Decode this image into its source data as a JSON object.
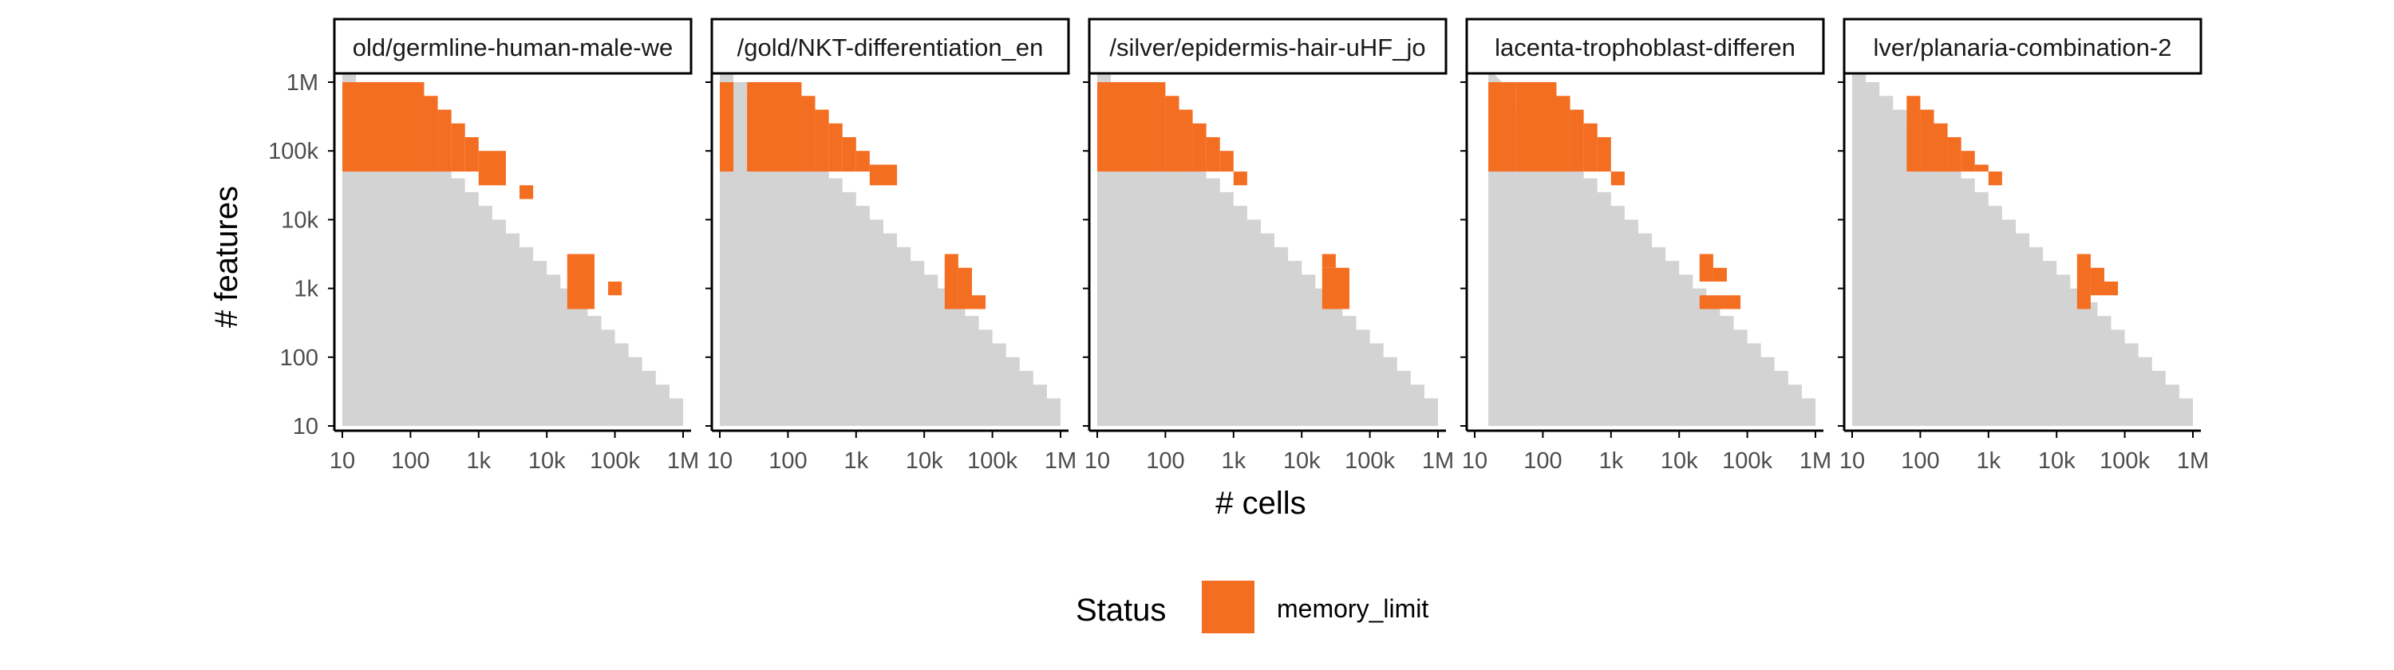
{
  "chart_data": {
    "type": "heatmap",
    "xlabel": "# cells",
    "ylabel": "# features",
    "x_scale": "log10",
    "y_scale": "log10",
    "xlim": [
      10,
      1000000
    ],
    "ylim": [
      10,
      1000000
    ],
    "x_ticks": [
      {
        "value": 10,
        "label": "10"
      },
      {
        "value": 100,
        "label": "100"
      },
      {
        "value": 1000,
        "label": "1k"
      },
      {
        "value": 10000,
        "label": "10k"
      },
      {
        "value": 100000,
        "label": "100k"
      },
      {
        "value": 1000000,
        "label": "1M"
      }
    ],
    "y_ticks": [
      {
        "value": 10,
        "label": "10"
      },
      {
        "value": 100,
        "label": "100"
      },
      {
        "value": 1000,
        "label": "1k"
      },
      {
        "value": 10000,
        "label": "10k"
      },
      {
        "value": 100000,
        "label": "100k"
      },
      {
        "value": 1000000,
        "label": "1M"
      }
    ],
    "colors": {
      "background_tile": "#d3d3d3",
      "memory_limit": "#f46e22",
      "strip_border": "#000000",
      "axis": "#000000"
    },
    "legend": {
      "title": "Status",
      "position": "bottom",
      "entries": [
        {
          "label": "memory_limit",
          "color": "#f46e22"
        }
      ]
    },
    "panels": [
      {
        "title": "old/germline-human-male-we",
        "start_log10_x": 1.0,
        "memory_limit": [
          {
            "log10_cells": [
              1.0,
              2.2
            ],
            "log10_features": [
              4.7,
              6.0
            ]
          },
          {
            "log10_cells": [
              2.2,
              2.4
            ],
            "log10_features": [
              4.7,
              5.8
            ]
          },
          {
            "log10_cells": [
              2.4,
              2.6
            ],
            "log10_features": [
              4.7,
              5.6
            ]
          },
          {
            "log10_cells": [
              2.6,
              2.8
            ],
            "log10_features": [
              4.7,
              5.4
            ]
          },
          {
            "log10_cells": [
              2.8,
              3.0
            ],
            "log10_features": [
              4.7,
              5.2
            ]
          },
          {
            "log10_cells": [
              3.0,
              3.4
            ],
            "log10_features": [
              4.5,
              5.0
            ]
          },
          {
            "log10_cells": [
              3.6,
              3.8
            ],
            "log10_features": [
              4.3,
              4.5
            ]
          },
          {
            "log10_cells": [
              4.3,
              4.7
            ],
            "log10_features": [
              2.7,
              3.5
            ]
          },
          {
            "log10_cells": [
              4.9,
              5.1
            ],
            "log10_features": [
              2.9,
              3.1
            ]
          }
        ]
      },
      {
        "title": "/gold/NKT-differentiation_en",
        "start_log10_x": 1.0,
        "memory_limit": [
          {
            "log10_cells": [
              1.0,
              1.2
            ],
            "log10_features": [
              4.7,
              6.0
            ]
          },
          {
            "log10_cells": [
              1.4,
              2.2
            ],
            "log10_features": [
              4.7,
              6.0
            ]
          },
          {
            "log10_cells": [
              2.2,
              2.4
            ],
            "log10_features": [
              4.7,
              5.8
            ]
          },
          {
            "log10_cells": [
              2.4,
              2.6
            ],
            "log10_features": [
              4.7,
              5.6
            ]
          },
          {
            "log10_cells": [
              2.6,
              2.8
            ],
            "log10_features": [
              4.7,
              5.4
            ]
          },
          {
            "log10_cells": [
              2.8,
              3.0
            ],
            "log10_features": [
              4.7,
              5.2
            ]
          },
          {
            "log10_cells": [
              3.0,
              3.2
            ],
            "log10_features": [
              4.7,
              5.0
            ]
          },
          {
            "log10_cells": [
              3.2,
              3.6
            ],
            "log10_features": [
              4.5,
              4.8
            ]
          },
          {
            "log10_cells": [
              4.3,
              4.5
            ],
            "log10_features": [
              2.7,
              3.5
            ]
          },
          {
            "log10_cells": [
              4.5,
              4.7
            ],
            "log10_features": [
              2.7,
              3.3
            ]
          },
          {
            "log10_cells": [
              4.7,
              4.9
            ],
            "log10_features": [
              2.7,
              2.9
            ]
          }
        ]
      },
      {
        "title": "/silver/epidermis-hair-uHF_jo",
        "start_log10_x": 1.0,
        "memory_limit": [
          {
            "log10_cells": [
              1.0,
              2.0
            ],
            "log10_features": [
              4.7,
              6.0
            ]
          },
          {
            "log10_cells": [
              2.0,
              2.2
            ],
            "log10_features": [
              4.7,
              5.8
            ]
          },
          {
            "log10_cells": [
              2.2,
              2.4
            ],
            "log10_features": [
              4.7,
              5.6
            ]
          },
          {
            "log10_cells": [
              2.4,
              2.6
            ],
            "log10_features": [
              4.7,
              5.4
            ]
          },
          {
            "log10_cells": [
              2.6,
              2.8
            ],
            "log10_features": [
              4.7,
              5.2
            ]
          },
          {
            "log10_cells": [
              2.8,
              3.0
            ],
            "log10_features": [
              4.7,
              5.0
            ]
          },
          {
            "log10_cells": [
              3.0,
              3.2
            ],
            "log10_features": [
              4.5,
              4.7
            ]
          },
          {
            "log10_cells": [
              4.3,
              4.7
            ],
            "log10_features": [
              2.7,
              3.3
            ]
          },
          {
            "log10_cells": [
              4.3,
              4.5
            ],
            "log10_features": [
              3.3,
              3.5
            ]
          }
        ]
      },
      {
        "title": "lacenta-trophoblast-differen",
        "start_log10_x": 1.2,
        "memory_limit": [
          {
            "log10_cells": [
              1.2,
              1.6
            ],
            "log10_features": [
              4.7,
              6.0
            ]
          },
          {
            "log10_cells": [
              1.6,
              2.2
            ],
            "log10_features": [
              4.7,
              6.0
            ]
          },
          {
            "log10_cells": [
              2.2,
              2.4
            ],
            "log10_features": [
              4.7,
              5.8
            ]
          },
          {
            "log10_cells": [
              2.4,
              2.6
            ],
            "log10_features": [
              4.7,
              5.6
            ]
          },
          {
            "log10_cells": [
              2.6,
              2.8
            ],
            "log10_features": [
              4.7,
              5.4
            ]
          },
          {
            "log10_cells": [
              2.8,
              3.0
            ],
            "log10_features": [
              4.7,
              5.2
            ]
          },
          {
            "log10_cells": [
              3.0,
              3.2
            ],
            "log10_features": [
              4.5,
              4.7
            ]
          },
          {
            "log10_cells": [
              4.3,
              4.5
            ],
            "log10_features": [
              3.1,
              3.5
            ]
          },
          {
            "log10_cells": [
              4.5,
              4.7
            ],
            "log10_features": [
              3.1,
              3.3
            ]
          },
          {
            "log10_cells": [
              4.3,
              4.9
            ],
            "log10_features": [
              2.7,
              2.9
            ]
          }
        ]
      },
      {
        "title": "lver/planaria-combination-2",
        "start_log10_x": 1.0,
        "memory_limit": [
          {
            "log10_cells": [
              1.8,
              2.0
            ],
            "log10_features": [
              4.7,
              5.8
            ]
          },
          {
            "log10_cells": [
              2.0,
              2.2
            ],
            "log10_features": [
              4.7,
              5.6
            ]
          },
          {
            "log10_cells": [
              2.2,
              2.4
            ],
            "log10_features": [
              4.7,
              5.4
            ]
          },
          {
            "log10_cells": [
              2.4,
              2.6
            ],
            "log10_features": [
              4.7,
              5.2
            ]
          },
          {
            "log10_cells": [
              2.6,
              2.8
            ],
            "log10_features": [
              4.7,
              5.0
            ]
          },
          {
            "log10_cells": [
              2.8,
              3.0
            ],
            "log10_features": [
              4.7,
              4.8
            ]
          },
          {
            "log10_cells": [
              3.0,
              3.2
            ],
            "log10_features": [
              4.5,
              4.7
            ]
          },
          {
            "log10_cells": [
              4.3,
              4.5
            ],
            "log10_features": [
              2.7,
              3.5
            ]
          },
          {
            "log10_cells": [
              4.5,
              4.7
            ],
            "log10_features": [
              2.9,
              3.3
            ]
          },
          {
            "log10_cells": [
              4.7,
              4.9
            ],
            "log10_features": [
              2.9,
              3.1
            ]
          }
        ]
      }
    ]
  }
}
